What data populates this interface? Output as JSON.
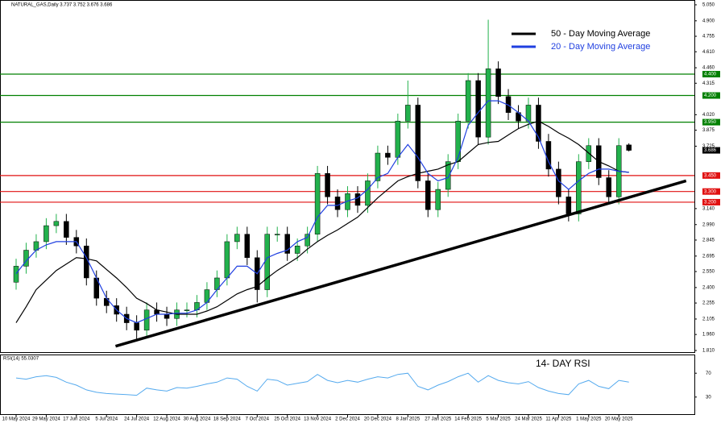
{
  "chart_data": {
    "type": "candlestick",
    "title": "NATURAL_GAS,Daily 3.737 3.752 3.676 3.686",
    "categories": [
      "10 May 2024",
      null,
      null,
      "29 May 2024",
      null,
      null,
      "17 Jun 2024",
      null,
      null,
      "5 Jul 2024",
      null,
      null,
      "24 Jul 2024",
      null,
      null,
      "12 Aug 2024",
      null,
      null,
      "30 Aug 2024",
      null,
      null,
      "18 Sep 2024",
      null,
      null,
      "7 Oct 2024",
      null,
      null,
      "25 Oct 2024",
      null,
      null,
      "13 Nov 2024",
      null,
      null,
      "2 Dec 2024",
      null,
      null,
      "20 Dec 2024",
      null,
      null,
      "8 Jan 2025",
      null,
      null,
      "27 Jan 2025",
      null,
      null,
      "14 Feb 2025",
      null,
      null,
      "5 Mar 2025",
      null,
      null,
      "24 Mar 2025",
      null,
      null,
      "11 Apr 2025",
      null,
      null,
      "1 May 2025",
      null,
      null,
      "20 May 2025",
      null
    ],
    "open": [
      2.45,
      2.6,
      2.75,
      2.83,
      2.98,
      3.02,
      2.87,
      2.79,
      2.49,
      2.3,
      2.23,
      2.15,
      2.07,
      2.0,
      2.19,
      2.15,
      2.11,
      2.19,
      2.19,
      2.26,
      2.38,
      2.49,
      2.83,
      2.9,
      2.68,
      2.38,
      2.9,
      2.9,
      2.72,
      2.79,
      2.9,
      3.47,
      3.25,
      3.13,
      3.28,
      3.17,
      3.4,
      3.66,
      3.62,
      3.96,
      4.11,
      3.4,
      3.13,
      3.32,
      3.58,
      3.96,
      4.34,
      3.81,
      4.45,
      4.19,
      4.04,
      3.96,
      4.11,
      3.77,
      3.51,
      3.25,
      3.09,
      3.58,
      3.73,
      3.43,
      3.25,
      3.737
    ],
    "high": [
      2.67,
      2.82,
      2.9,
      3.05,
      3.09,
      3.09,
      2.94,
      2.86,
      2.56,
      2.37,
      2.3,
      2.22,
      2.14,
      2.26,
      2.26,
      2.22,
      2.26,
      2.26,
      2.33,
      2.45,
      2.56,
      2.9,
      2.97,
      2.97,
      2.75,
      2.97,
      2.97,
      2.97,
      2.86,
      2.97,
      3.54,
      3.54,
      3.32,
      3.35,
      3.35,
      3.47,
      3.73,
      3.73,
      4.03,
      4.34,
      4.18,
      3.47,
      3.39,
      3.65,
      4.03,
      4.41,
      4.41,
      4.91,
      4.52,
      4.26,
      4.11,
      4.18,
      4.18,
      3.84,
      3.58,
      3.32,
      3.65,
      3.8,
      3.8,
      3.5,
      3.8,
      3.752
    ],
    "low": [
      2.38,
      2.53,
      2.68,
      2.76,
      2.91,
      2.8,
      2.72,
      2.42,
      2.23,
      2.16,
      2.08,
      2.0,
      1.92,
      1.93,
      2.08,
      2.04,
      2.04,
      2.12,
      2.12,
      2.19,
      2.31,
      2.42,
      2.76,
      2.61,
      2.26,
      2.31,
      2.83,
      2.65,
      2.65,
      2.72,
      2.83,
      3.18,
      3.06,
      3.06,
      3.1,
      3.1,
      3.33,
      3.55,
      3.55,
      3.89,
      3.33,
      3.06,
      3.06,
      3.25,
      3.51,
      3.89,
      3.74,
      3.74,
      4.12,
      3.97,
      3.89,
      3.89,
      3.7,
      3.44,
      3.18,
      3.02,
      3.02,
      3.51,
      3.36,
      3.18,
      3.18,
      3.676
    ],
    "close": [
      2.6,
      2.75,
      2.83,
      2.98,
      3.02,
      2.87,
      2.79,
      2.49,
      2.3,
      2.23,
      2.15,
      2.07,
      2.0,
      2.19,
      2.15,
      2.11,
      2.19,
      2.19,
      2.26,
      2.38,
      2.49,
      2.83,
      2.9,
      2.68,
      2.38,
      2.9,
      2.9,
      2.72,
      2.79,
      2.9,
      3.47,
      3.25,
      3.13,
      3.28,
      3.17,
      3.4,
      3.66,
      3.62,
      3.96,
      4.11,
      3.4,
      3.13,
      3.32,
      3.58,
      3.96,
      4.34,
      3.81,
      4.45,
      4.19,
      4.04,
      3.96,
      4.11,
      3.77,
      3.51,
      3.25,
      3.09,
      3.58,
      3.73,
      3.43,
      3.25,
      3.73,
      3.686
    ],
    "up_color": "#22b14c",
    "down_color": "#000000",
    "series": [
      {
        "name": "50 - Day Moving Average",
        "color": "#000000",
        "values": [
          2.07,
          2.22,
          2.38,
          2.47,
          2.56,
          2.62,
          2.68,
          2.67,
          2.65,
          2.57,
          2.49,
          2.4,
          2.3,
          2.25,
          2.19,
          2.17,
          2.15,
          2.15,
          2.15,
          2.18,
          2.22,
          2.28,
          2.34,
          2.38,
          2.41,
          2.49,
          2.56,
          2.62,
          2.68,
          2.76,
          2.83,
          2.89,
          2.94,
          3.0,
          3.06,
          3.15,
          3.24,
          3.32,
          3.4,
          3.44,
          3.47,
          3.49,
          3.51,
          3.55,
          3.58,
          3.66,
          3.74,
          3.76,
          3.77,
          3.83,
          3.89,
          3.93,
          3.96,
          3.91,
          3.85,
          3.8,
          3.74,
          3.66,
          3.58,
          3.54,
          3.49,
          3.48
        ]
      },
      {
        "name": "20 - Day Moving Average",
        "color": "#1f3fe0",
        "values": [
          2.53,
          2.65,
          2.75,
          2.8,
          2.83,
          2.83,
          2.83,
          2.68,
          2.49,
          2.3,
          2.19,
          2.11,
          2.07,
          2.11,
          2.15,
          2.15,
          2.16,
          2.16,
          2.19,
          2.26,
          2.38,
          2.49,
          2.6,
          2.6,
          2.53,
          2.68,
          2.72,
          2.75,
          2.83,
          2.87,
          3.06,
          3.17,
          3.17,
          3.21,
          3.24,
          3.32,
          3.43,
          3.47,
          3.62,
          3.74,
          3.62,
          3.47,
          3.4,
          3.43,
          3.62,
          3.92,
          4.04,
          4.15,
          4.15,
          4.11,
          4.04,
          3.96,
          3.81,
          3.58,
          3.4,
          3.32,
          3.4,
          3.47,
          3.51,
          3.51,
          3.49,
          3.48
        ]
      }
    ],
    "levels": [
      {
        "value": 4.4,
        "label": "4.400",
        "color": "#008000"
      },
      {
        "value": 4.2,
        "label": "4.200",
        "color": "#008000"
      },
      {
        "value": 3.95,
        "label": "3.950",
        "color": "#008000"
      },
      {
        "value": 3.45,
        "label": "3.450",
        "color": "#e01010"
      },
      {
        "value": 3.3,
        "label": "3.300",
        "color": "#e01010"
      },
      {
        "value": 3.2,
        "label": "3.200",
        "color": "#e01010"
      }
    ],
    "trendline": {
      "x": [
        9.9,
        66.7
      ],
      "y": [
        1.85,
        3.4
      ],
      "color": "#000000"
    },
    "ylim": [
      1.795,
      5.095
    ],
    "yticks": [
      {
        "value": 5.05,
        "label": "5.050"
      },
      {
        "value": 4.9,
        "label": "4.900"
      },
      {
        "value": 4.755,
        "label": "4.755"
      },
      {
        "value": 4.61,
        "label": "4.610"
      },
      {
        "value": 4.46,
        "label": "4.460"
      },
      {
        "value": 4.315,
        "label": "4.315"
      },
      {
        "value": 4.02,
        "label": "4.020"
      },
      {
        "value": 3.875,
        "label": "3.875"
      },
      {
        "value": 3.725,
        "label": "3.725"
      },
      {
        "value": 3.14,
        "label": "3.140"
      },
      {
        "value": 2.99,
        "label": "2.990"
      },
      {
        "value": 2.845,
        "label": "2.845"
      },
      {
        "value": 2.695,
        "label": "2.695"
      },
      {
        "value": 2.55,
        "label": "2.550"
      },
      {
        "value": 2.4,
        "label": "2.400"
      },
      {
        "value": 2.255,
        "label": "2.255"
      },
      {
        "value": 2.105,
        "label": "2.105"
      },
      {
        "value": 1.96,
        "label": "1.960"
      },
      {
        "value": 1.81,
        "label": "1.810"
      }
    ],
    "indicator": {
      "name": "RSI(14) 55.0307",
      "annotation": "14- DAY RSI",
      "color": "#55aaee",
      "values": [
        62,
        60,
        64,
        66,
        63,
        55,
        50,
        42,
        38,
        36,
        35,
        34,
        33,
        45,
        42,
        40,
        46,
        45,
        48,
        52,
        55,
        62,
        60,
        48,
        40,
        60,
        58,
        50,
        53,
        56,
        68,
        58,
        54,
        58,
        55,
        60,
        64,
        62,
        68,
        70,
        48,
        42,
        50,
        56,
        64,
        70,
        55,
        66,
        58,
        54,
        52,
        56,
        46,
        40,
        36,
        34,
        52,
        58,
        48,
        44,
        58,
        55
      ],
      "ylim": [
        0,
        100
      ],
      "yticks": [
        70,
        30
      ]
    }
  }
}
